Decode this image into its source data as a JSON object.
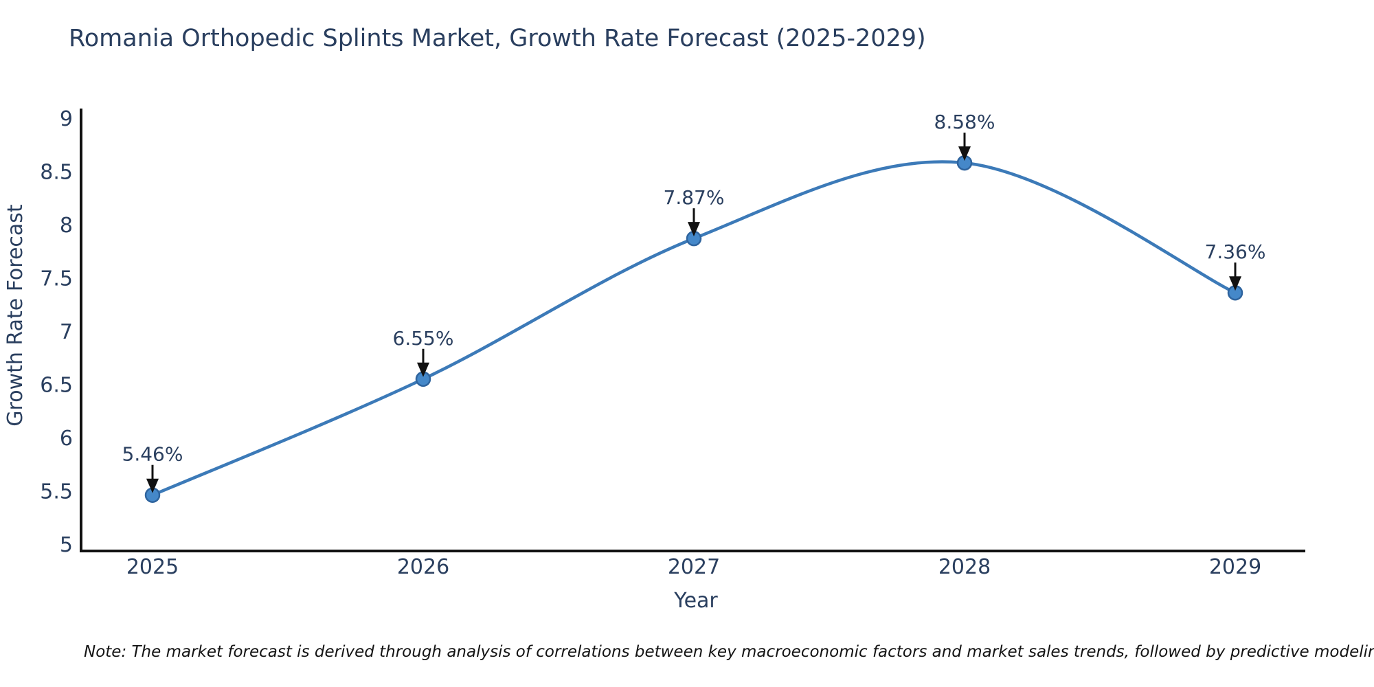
{
  "title": "Romania Orthopedic Splints Market, Growth Rate Forecast (2025-2029)",
  "note": "Note: The market forecast is derived through analysis of correlations between key macroeconomic factors and market sales trends, followed by predictive modeling to project future sales",
  "chart_data": {
    "type": "line",
    "title": "Romania Orthopedic Splints Market, Growth Rate Forecast (2025-2029)",
    "xlabel": "Year",
    "ylabel": "Growth Rate Forecast",
    "categories": [
      "2025",
      "2026",
      "2027",
      "2028",
      "2029"
    ],
    "series": [
      {
        "name": "Growth Rate Forecast",
        "values": [
          5.46,
          6.55,
          7.87,
          8.58,
          7.36
        ],
        "point_labels": [
          "5.46%",
          "6.55%",
          "7.87%",
          "8.58%",
          "7.36%"
        ]
      }
    ],
    "ylim": [
      5,
      9
    ],
    "y_ticks": [
      5,
      5.5,
      6,
      6.5,
      7,
      7.5,
      8,
      8.5,
      9
    ],
    "y_tick_labels": [
      "5",
      "5.5",
      "6",
      "6.5",
      "7",
      "7.5",
      "8",
      "8.5",
      "9"
    ],
    "grid": false,
    "legend_position": "none",
    "line_style": "spline",
    "annotations": "black arrows pointing down to each data point",
    "colors": {
      "line": "#3c7ab8",
      "marker_fill": "#4588c9",
      "marker_edge": "#2f649e",
      "axis_line": "#111111",
      "text": "#2a3f5f",
      "annotation_arrow": "#111111",
      "background": "#ffffff"
    }
  }
}
